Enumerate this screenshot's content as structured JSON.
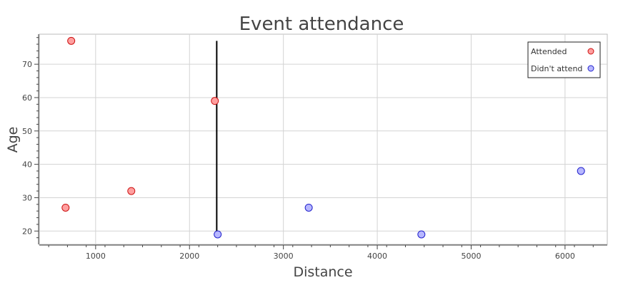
{
  "chart_data": {
    "type": "scatter",
    "title": "Event attendance",
    "xlabel": "Distance",
    "ylabel": "Age",
    "xlim": [
      400,
      6450
    ],
    "ylim": [
      16,
      79
    ],
    "xticks": [
      1000,
      2000,
      3000,
      4000,
      5000,
      6000
    ],
    "yticks": [
      20,
      30,
      40,
      50,
      60,
      70
    ],
    "grid": true,
    "legend_position": "top-right",
    "series": [
      {
        "name": "Attended",
        "fill": "#ff9f9f",
        "stroke": "#cc1111",
        "points": [
          {
            "x": 740,
            "y": 77
          },
          {
            "x": 680,
            "y": 27
          },
          {
            "x": 1380,
            "y": 32
          },
          {
            "x": 2270,
            "y": 59
          }
        ]
      },
      {
        "name": "Didn't attend",
        "fill": "#b7b7ff",
        "stroke": "#2222cc",
        "points": [
          {
            "x": 2300,
            "y": 19
          },
          {
            "x": 3270,
            "y": 27
          },
          {
            "x": 4470,
            "y": 19
          },
          {
            "x": 6170,
            "y": 38
          }
        ]
      }
    ],
    "annotations": [
      {
        "type": "vline",
        "x": 2290,
        "y0": 19,
        "y1": 77,
        "color": "#000000"
      }
    ]
  }
}
